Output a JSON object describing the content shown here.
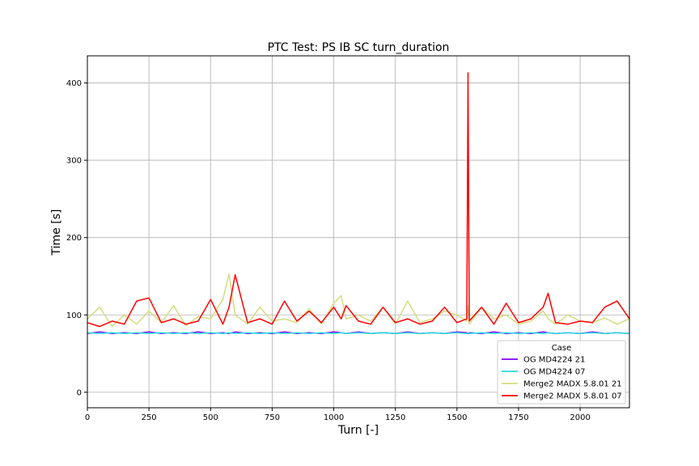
{
  "chart_data": {
    "type": "line",
    "title": "PTC Test: PS IB SC turn_duration",
    "xlabel": "Turn [-]",
    "ylabel": "Time [s]",
    "xlim": [
      0,
      2200
    ],
    "ylim": [
      -20,
      435
    ],
    "xticks": [
      0,
      250,
      500,
      750,
      1000,
      1250,
      1500,
      1750,
      2000
    ],
    "yticks": [
      0,
      100,
      200,
      300,
      400
    ],
    "grid": true,
    "legend": {
      "title": "Case",
      "placement": "lower-right"
    },
    "x": [
      0,
      50,
      100,
      150,
      200,
      250,
      300,
      350,
      400,
      450,
      500,
      550,
      575,
      600,
      650,
      700,
      750,
      800,
      850,
      900,
      950,
      1000,
      1030,
      1050,
      1100,
      1150,
      1200,
      1250,
      1300,
      1350,
      1400,
      1450,
      1500,
      1540,
      1545,
      1550,
      1600,
      1650,
      1700,
      1750,
      1800,
      1850,
      1870,
      1900,
      1950,
      2000,
      2050,
      2100,
      2150,
      2200
    ],
    "series": [
      {
        "name": "OG MD4224 21",
        "color": "#8000ff",
        "values": [
          76,
          78,
          76,
          77,
          76,
          78,
          76,
          77,
          76,
          78,
          76,
          77,
          76,
          78,
          76,
          77,
          76,
          78,
          76,
          77,
          76,
          78,
          77,
          76,
          78,
          76,
          77,
          76,
          78,
          76,
          77,
          76,
          78,
          77,
          76,
          77,
          76,
          78,
          76,
          77,
          76,
          78,
          77,
          76,
          77,
          76,
          78,
          76,
          77,
          76
        ]
      },
      {
        "name": "OG MD4224 07",
        "color": "#2adddd",
        "values": [
          77,
          76,
          77,
          76,
          77,
          76,
          77,
          76,
          77,
          76,
          77,
          76,
          77,
          76,
          77,
          76,
          77,
          76,
          77,
          76,
          77,
          76,
          77,
          76,
          77,
          76,
          77,
          76,
          77,
          76,
          77,
          76,
          77,
          76,
          77,
          76,
          77,
          76,
          77,
          76,
          77,
          76,
          77,
          76,
          77,
          76,
          77,
          76,
          77,
          76
        ]
      },
      {
        "name": "Merge2 MADX 5.8.01 21",
        "color": "#d4dd80",
        "values": [
          95,
          110,
          85,
          100,
          88,
          105,
          90,
          112,
          86,
          98,
          95,
          120,
          153,
          100,
          88,
          110,
          92,
          95,
          90,
          108,
          88,
          115,
          125,
          95,
          100,
          92,
          110,
          88,
          118,
          90,
          95,
          105,
          100,
          92,
          112,
          88,
          110,
          95,
          100,
          88,
          92,
          105,
          95,
          88,
          100,
          92,
          90,
          96,
          88,
          95
        ]
      },
      {
        "name": "Merge2 MADX 5.8.01 07",
        "color": "#ff0000",
        "values": [
          90,
          85,
          92,
          88,
          118,
          122,
          90,
          95,
          88,
          92,
          120,
          88,
          110,
          152,
          90,
          95,
          88,
          118,
          92,
          105,
          90,
          110,
          95,
          112,
          92,
          88,
          110,
          90,
          95,
          88,
          92,
          110,
          90,
          95,
          413,
          92,
          110,
          88,
          115,
          90,
          95,
          110,
          128,
          90,
          88,
          92,
          90,
          110,
          118,
          95
        ]
      }
    ]
  }
}
